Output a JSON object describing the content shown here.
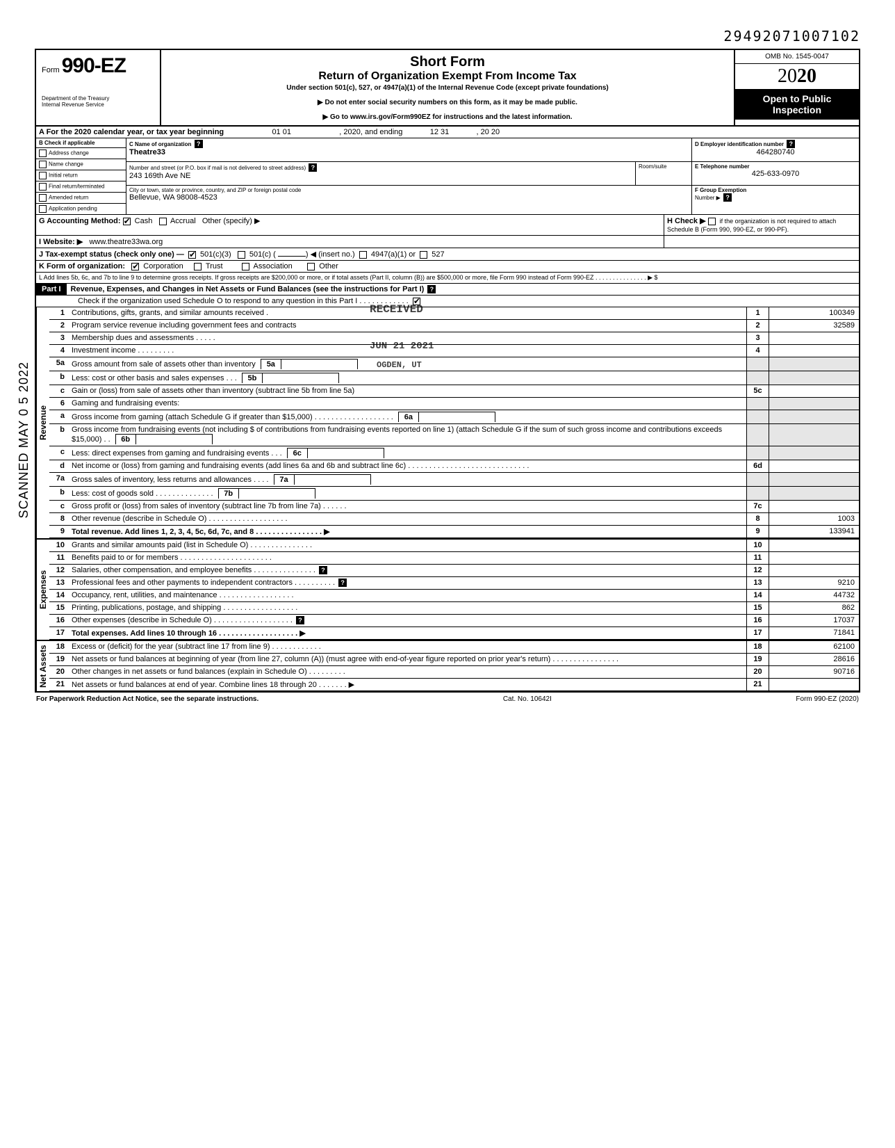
{
  "dln": "29492071007102",
  "omb": "OMB No. 1545-0047",
  "form_label": "Form",
  "form_number": "990-EZ",
  "year_outline": "20",
  "year_bold": "20",
  "dept1": "Department of the Treasury",
  "dept2": "Internal Revenue Service",
  "title1": "Short Form",
  "title2": "Return of Organization Exempt From Income Tax",
  "subtitle": "Under section 501(c), 527, or 4947(a)(1) of the Internal Revenue Code (except private foundations)",
  "note1": "▶ Do not enter social security numbers on this form, as it may be made public.",
  "note2": "▶ Go to www.irs.gov/Form990EZ for instructions and the latest information.",
  "open1": "Open to Public",
  "open2": "Inspection",
  "lineA": "A  For the 2020 calendar year, or tax year beginning",
  "lineA_begin": "01 01",
  "lineA_mid": ", 2020, and ending",
  "lineA_end_m": "12 31",
  "lineA_end_y": ", 20    20",
  "B_label": "B  Check if applicable",
  "B_items": [
    "Address change",
    "Name change",
    "Initial return",
    "Final return/terminated",
    "Amended return",
    "Application pending"
  ],
  "C_label": "C  Name of organization",
  "C_value": "Theatre33",
  "C_street_label": "Number and street (or P.O. box if mail is not delivered to street address)",
  "C_room": "Room/suite",
  "C_street": "243 169th Ave NE",
  "C_city_label": "City or town, state or province, country, and ZIP or foreign postal code",
  "C_city": "Bellevue, WA 98008-4523",
  "D_label": "D Employer identification number",
  "D_value": "464280740",
  "E_label": "E  Telephone number",
  "E_value": "425-633-0970",
  "F_label": "F  Group Exemption",
  "F_num": "Number  ▶",
  "G_label": "G  Accounting Method:",
  "G_cash": "Cash",
  "G_accrual": "Accrual",
  "G_other": "Other (specify) ▶",
  "H_label": "H  Check ▶",
  "H_text": "if the organization is not required to attach Schedule B (Form 990, 990-EZ, or 990-PF).",
  "I_label": "I  Website: ▶",
  "I_value": "www.theatre33wa.org",
  "J_label": "J  Tax-exempt status (check only one) —",
  "J_1": "501(c)(3)",
  "J_2": "501(c) (",
  "J_3": ") ◀ (insert no.)",
  "J_4": "4947(a)(1) or",
  "J_5": "527",
  "K_label": "K  Form of organization:",
  "K_1": "Corporation",
  "K_2": "Trust",
  "K_3": "Association",
  "K_4": "Other",
  "L_text": "L  Add lines 5b, 6c, and 7b to line 9 to determine gross receipts. If gross receipts are $200,000 or more, or if total assets (Part II, column (B)) are $500,000 or more, file Form 990 instead of Form 990-EZ .  .  .  .  .  .  .  .  .  .  .  .  .  .  .   ▶   $",
  "partI_label": "Part I",
  "partI_title": "Revenue, Expenses, and Changes in Net Assets or Fund Balances (see the instructions for Part I)",
  "partI_check": "Check if the organization used Schedule O to respond to any question in this Part I  .  .  .  .  .  .  .  .  .  .  .  .",
  "side_rev": "Revenue",
  "side_exp": "Expenses",
  "side_net": "Net Assets",
  "scanned": "SCANNED MAY 0 5 2022",
  "stamp_recv": "RECEIVED",
  "stamp_date": "JUN 21 2021",
  "stamp_ogden": "OGDEN, UT",
  "lines": {
    "1": {
      "n": "1",
      "t": "Contributions, gifts, grants, and similar amounts received .",
      "v": "100349"
    },
    "2": {
      "n": "2",
      "t": "Program service revenue including government fees and contracts",
      "v": "32589"
    },
    "3": {
      "n": "3",
      "t": "Membership dues and assessments .  .  .  .  .",
      "v": ""
    },
    "4": {
      "n": "4",
      "t": "Investment income  .  .  .  .  .  .  .  .  .",
      "v": ""
    },
    "5a": {
      "n": "5a",
      "t": "Gross amount from sale of assets other than inventory",
      "in": "5a",
      "iv": ""
    },
    "5b": {
      "n": "b",
      "t": "Less: cost or other basis and sales expenses .  .  .",
      "in": "5b",
      "iv": ""
    },
    "5c": {
      "n": "c",
      "t": "Gain or (loss) from sale of assets other than inventory (subtract line 5b from line 5a)",
      "num": "5c",
      "v": ""
    },
    "6": {
      "n": "6",
      "t": "Gaming and fundraising events:"
    },
    "6a": {
      "n": "a",
      "t": "Gross income from gaming (attach Schedule G if greater than $15,000) .  .  .  .  .  .  .  .  .  .  .  .  .  .  .  .  .  .  .",
      "in": "6a",
      "iv": ""
    },
    "6b": {
      "n": "b",
      "t": "Gross income from fundraising events (not including  $                       of contributions from fundraising events reported on line 1) (attach Schedule G if the sum of such gross income and contributions exceeds $15,000) .  .",
      "in": "6b",
      "iv": ""
    },
    "6c": {
      "n": "c",
      "t": "Less: direct expenses from gaming and fundraising events  .  .  .",
      "in": "6c",
      "iv": ""
    },
    "6d": {
      "n": "d",
      "t": "Net income or (loss) from gaming and fundraising events (add lines 6a and 6b and subtract line 6c)  .  .  .  .  .  .  .  .  .  .  .  .  .  .  .  .  .  .  .  .  .  .  .  .  .  .  .  .  .",
      "num": "6d",
      "v": ""
    },
    "7a": {
      "n": "7a",
      "t": "Gross sales of inventory, less returns and allowances  .  .  .  .",
      "in": "7a",
      "iv": ""
    },
    "7b": {
      "n": "b",
      "t": "Less: cost of goods sold  .  .  .  .  .  .  .  .  .  .  .  .  .  .",
      "in": "7b",
      "iv": ""
    },
    "7c": {
      "n": "c",
      "t": "Gross profit or (loss) from sales of inventory (subtract line 7b from line 7a)  .  .  .  .  .  .",
      "num": "7c",
      "v": ""
    },
    "8": {
      "n": "8",
      "t": "Other revenue (describe in Schedule O) .  .  .  .  .  .  .  .  .  .  .  .  .  .  .  .  .  .  .",
      "v": "1003"
    },
    "9": {
      "n": "9",
      "t": "Total revenue. Add lines 1, 2, 3, 4, 5c, 6d, 7c, and 8  .  .  .  .  .  .  .  .  .  .  .  .  .  .  .  .  ▶",
      "v": "133941",
      "bold": true
    },
    "10": {
      "n": "10",
      "t": "Grants and similar amounts paid (list in Schedule O)  .  .  .  .  .  .  .  .  .  .  .  .  .  .  .",
      "v": ""
    },
    "11": {
      "n": "11",
      "t": "Benefits paid to or for members  .  .  .  .  .  .  .  .  .  .  .  .  .  .  .  .  .  .  .  .  .  .",
      "v": ""
    },
    "12": {
      "n": "12",
      "t": "Salaries, other compensation, and employee benefits  .  .  .  .  .  .  .  .  .  .  .  .  .  .  .",
      "v": "",
      "h": true
    },
    "13": {
      "n": "13",
      "t": "Professional fees and other payments to independent contractors  .  .  .  .  .  .  .  .  .  .",
      "v": "9210",
      "h": true
    },
    "14": {
      "n": "14",
      "t": "Occupancy, rent, utilities, and maintenance  .  .  .  .  .  .  .  .  .  .  .  .  .  .  .  .  .  .",
      "v": "44732"
    },
    "15": {
      "n": "15",
      "t": "Printing, publications, postage, and shipping .  .  .  .  .  .  .  .  .  .  .  .  .  .  .  .  .  .",
      "v": "862"
    },
    "16": {
      "n": "16",
      "t": "Other expenses (describe in Schedule O)  .  .  .  .  .  .  .  .  .  .  .  .  .  .  .  .  .  .  .",
      "v": "17037",
      "h": true
    },
    "17": {
      "n": "17",
      "t": "Total expenses. Add lines 10 through 16  .  .  .  .  .  .  .  .  .  .  .  .  .  .  .  .  .  .  .  ▶",
      "v": "71841",
      "bold": true
    },
    "18": {
      "n": "18",
      "t": "Excess or (deficit) for the year (subtract line 17 from line 9)  .  .  .  .  .  .  .  .  .  .  .  .",
      "v": "62100"
    },
    "19": {
      "n": "19",
      "t": "Net assets or fund balances at beginning of year (from line 27, column (A)) (must agree with end-of-year figure reported on prior year's return)  .  .  .  .  .  .  .  .  .  .  .  .  .  .  .  .",
      "v": "28616"
    },
    "20": {
      "n": "20",
      "t": "Other changes in net assets or fund balances (explain in Schedule O) .  .  .  .  .  .  .  .  .",
      "v": "90716"
    },
    "21": {
      "n": "21",
      "t": "Net assets or fund balances at end of year. Combine lines 18 through 20  .  .  .  .  .  .  .  ▶",
      "v": ""
    }
  },
  "footer_left": "For Paperwork Reduction Act Notice, see the separate instructions.",
  "footer_mid": "Cat. No. 10642I",
  "footer_right": "Form 990-EZ (2020)"
}
